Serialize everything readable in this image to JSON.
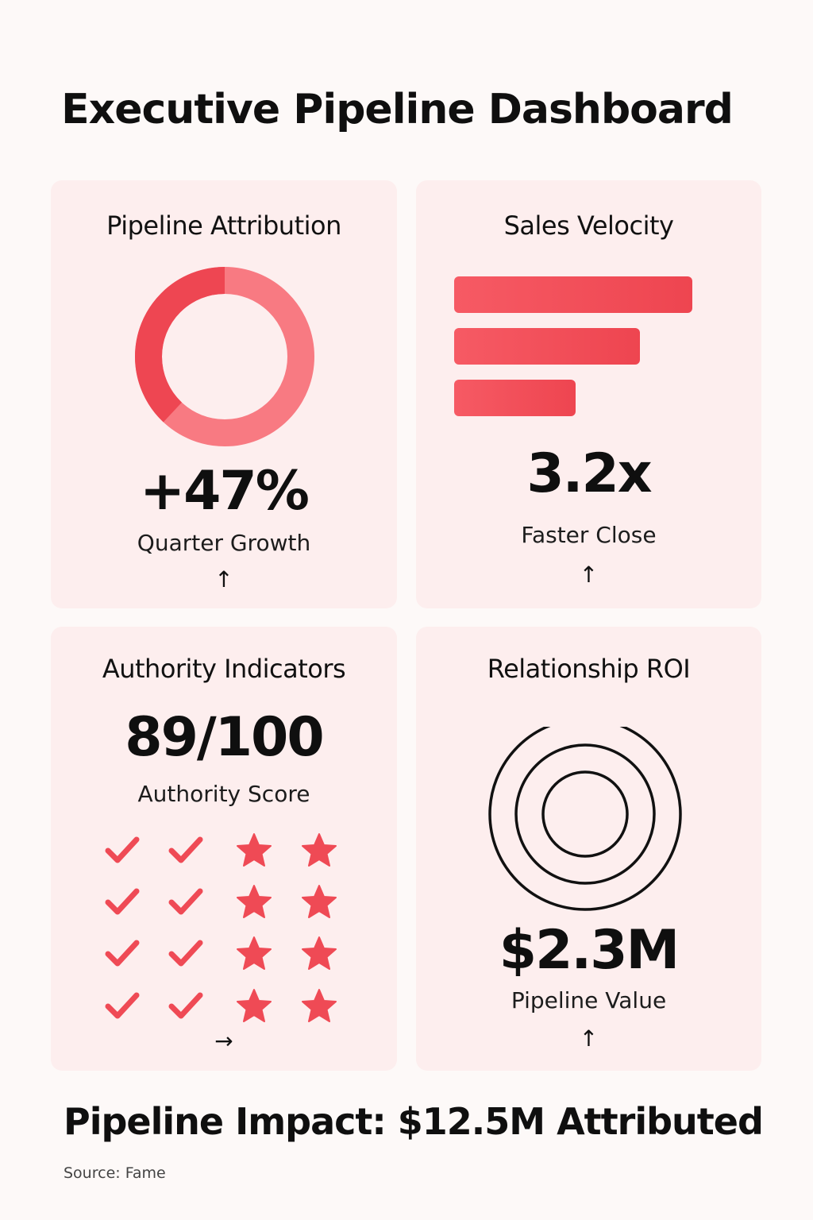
{
  "page": {
    "title": "Executive Pipeline Dashboard"
  },
  "cards": {
    "attribution": {
      "title": "Pipeline Attribution",
      "metric": "+47%",
      "label": "Quarter Growth",
      "arrow": "↑",
      "donut_share": 0.38
    },
    "velocity": {
      "title": "Sales Velocity",
      "metric": "3.2x",
      "label": "Faster Close",
      "arrow": "↑",
      "bar_levels": [
        1.0,
        0.78,
        0.51
      ]
    },
    "authority": {
      "title": "Authority Indicators",
      "metric": "89/100",
      "label": "Authority Score",
      "arrow": "→",
      "grid": {
        "rows": 4,
        "columns": [
          "check-icon",
          "check-icon",
          "star-icon",
          "star-icon"
        ]
      }
    },
    "roi": {
      "title": "Relationship ROI",
      "metric": "$2.3M",
      "label": "Pipeline Value",
      "arrow": "↑"
    }
  },
  "footer": {
    "headline": "Pipeline Impact: $12.5M Attributed",
    "source": "Source: Fame"
  },
  "colors": {
    "accent": "#ef4a55",
    "accent_light": "#f87a82",
    "card_bg": "#fdeeee",
    "page_bg": "#fdf9f8"
  }
}
